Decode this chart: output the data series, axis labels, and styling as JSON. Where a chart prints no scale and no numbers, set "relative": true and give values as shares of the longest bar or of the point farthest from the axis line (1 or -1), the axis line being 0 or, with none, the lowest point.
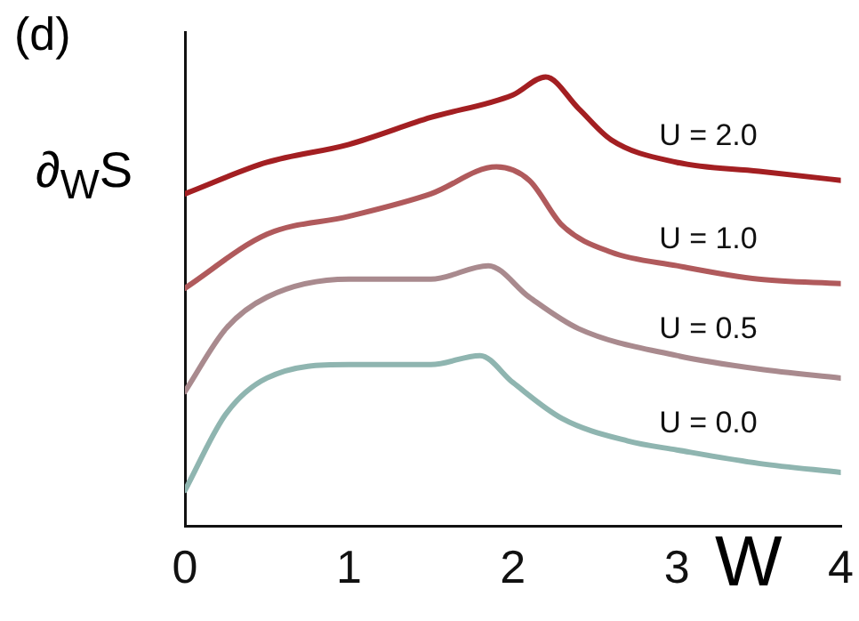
{
  "chart_data": {
    "type": "line",
    "title": "(d)",
    "ylabel": "∂$_{W}$S",
    "xlabel": "W",
    "relative": true,
    "xlim": [
      0,
      4
    ],
    "xticks": [
      0,
      1,
      2,
      3,
      4
    ],
    "grid": false,
    "legend": false,
    "marker": "none",
    "line_style": "solid",
    "series": [
      {
        "name": "U = 2.0",
        "color": "#a31f22",
        "x": [
          0,
          0.5,
          1,
          1.5,
          2,
          2.2,
          2.4,
          2.6,
          3,
          3.5,
          4
        ],
        "values": [
          0.74,
          0.81,
          0.85,
          0.91,
          0.96,
          1.0,
          0.93,
          0.86,
          0.81,
          0.79,
          0.77
        ]
      },
      {
        "name": "U = 1.0",
        "color": "#b05a5c",
        "x": [
          0,
          0.5,
          1,
          1.5,
          1.9,
          2.1,
          2.3,
          2.6,
          3,
          3.5,
          4
        ],
        "values": [
          0.53,
          0.65,
          0.69,
          0.74,
          0.8,
          0.77,
          0.67,
          0.61,
          0.58,
          0.55,
          0.54
        ]
      },
      {
        "name": "U = 0.5",
        "color": "#a98a8e",
        "x": [
          0,
          0.25,
          0.5,
          1,
          1.5,
          1.85,
          2.1,
          2.4,
          3,
          3.5,
          4
        ],
        "values": [
          0.3,
          0.44,
          0.51,
          0.55,
          0.55,
          0.58,
          0.51,
          0.44,
          0.38,
          0.35,
          0.33
        ]
      },
      {
        "name": "U = 0.0",
        "color": "#8fb5b0",
        "x": [
          0,
          0.25,
          0.5,
          1,
          1.5,
          1.8,
          2,
          2.3,
          2.7,
          3,
          3.5,
          4
        ],
        "values": [
          0.08,
          0.25,
          0.33,
          0.36,
          0.36,
          0.38,
          0.32,
          0.24,
          0.19,
          0.17,
          0.14,
          0.12
        ]
      }
    ]
  }
}
